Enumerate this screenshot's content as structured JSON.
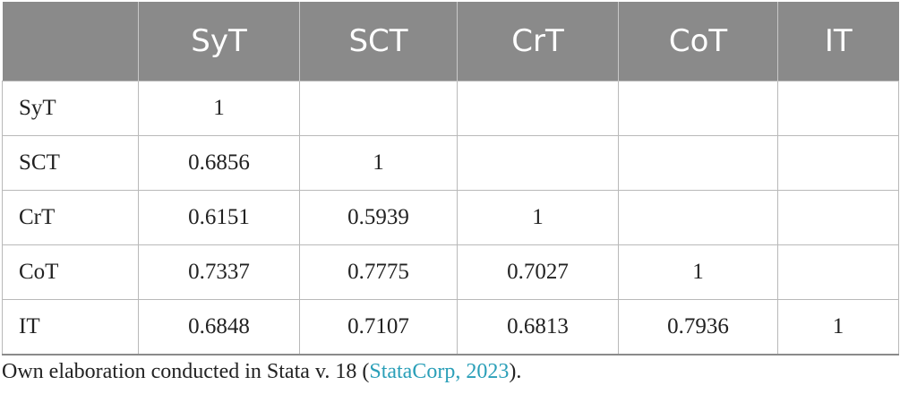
{
  "table": {
    "headers": [
      "",
      "SyT",
      "SCT",
      "CrT",
      "CoT",
      "IT"
    ],
    "rows": [
      {
        "label": "SyT",
        "cells": [
          "1",
          "",
          "",
          "",
          ""
        ]
      },
      {
        "label": "SCT",
        "cells": [
          "0.6856",
          "1",
          "",
          "",
          ""
        ]
      },
      {
        "label": "CrT",
        "cells": [
          "0.6151",
          "0.5939",
          "1",
          "",
          ""
        ]
      },
      {
        "label": "CoT",
        "cells": [
          "0.7337",
          "0.7775",
          "0.7027",
          "1",
          ""
        ]
      },
      {
        "label": "IT",
        "cells": [
          "0.6848",
          "0.7107",
          "0.6813",
          "0.7936",
          "1"
        ]
      }
    ]
  },
  "caption": {
    "prefix": "Own elaboration conducted in Stata v. 18 (",
    "link": "StataCorp, 2023",
    "suffix": ")."
  },
  "colors": {
    "header_bg": "#8a8a8a",
    "header_text": "#ffffff",
    "link": "#2a9fb8"
  }
}
